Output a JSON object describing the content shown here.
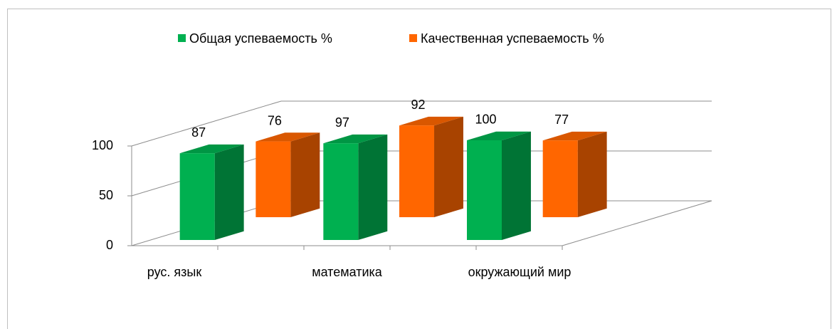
{
  "chart_data": {
    "type": "bar3d",
    "categories": [
      "рус. язык",
      "математика",
      "окружающий мир"
    ],
    "series": [
      {
        "name": "Общая успеваемость %",
        "color": "#00b050",
        "values": [
          87,
          97,
          100
        ]
      },
      {
        "name": "Качественная успеваемость %",
        "color": "#ff6600",
        "values": [
          76,
          92,
          77
        ]
      }
    ],
    "ylim": [
      0,
      100
    ],
    "yticks": [
      0,
      50,
      100
    ],
    "grid": true,
    "legend": "top"
  }
}
